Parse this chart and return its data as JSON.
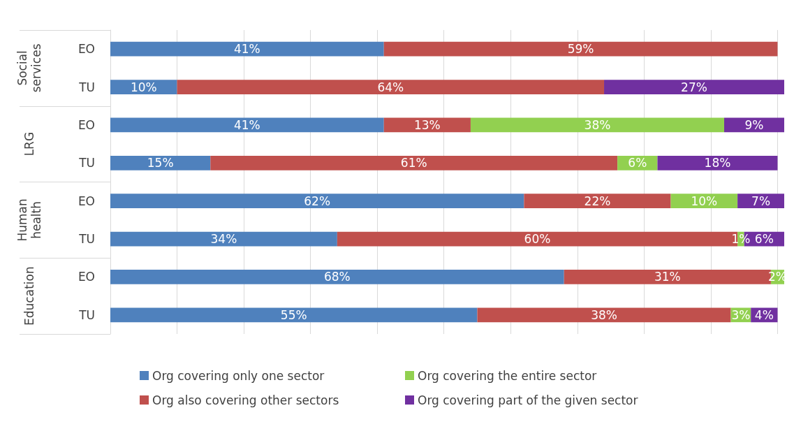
{
  "chart_data": {
    "type": "bar",
    "orientation": "horizontal",
    "stacked": true,
    "categories": [
      "EO",
      "TU",
      "EO",
      "TU",
      "EO",
      "TU",
      "EO",
      "TU"
    ],
    "annotations": [
      "Social services",
      "LRG",
      "Human health",
      "Education"
    ],
    "series": [
      {
        "name": "Org covering only one sector",
        "color": "#4f81bd",
        "values": [
          41,
          10,
          41,
          15,
          62,
          34,
          68,
          55
        ],
        "value_labels": [
          "41%",
          "10%",
          "41%",
          "15%",
          "62%",
          "34%",
          "68%",
          "55%"
        ]
      },
      {
        "name": "Org also covering other sectors",
        "color": "#c0504d",
        "values": [
          59,
          64,
          13,
          61,
          22,
          60,
          31,
          38
        ],
        "value_labels": [
          "59%",
          "64%",
          "13%",
          "61%",
          "22%",
          "60%",
          "31%",
          "38%"
        ]
      },
      {
        "name": "Org covering the entire sector",
        "color": "#92d050",
        "values": [
          null,
          null,
          38,
          6,
          10,
          1,
          2,
          3
        ],
        "value_labels": [
          null,
          null,
          "38%",
          "6%",
          "10%",
          "1%",
          "2%",
          "3%"
        ]
      },
      {
        "name": "Org covering part of the given sector",
        "color": "#7030a0",
        "values": [
          null,
          27,
          9,
          18,
          7,
          6,
          null,
          4
        ],
        "value_labels": [
          null,
          "27%",
          "9%",
          "18%",
          "7%",
          "6%",
          null,
          "4%"
        ]
      }
    ],
    "xlim": [
      0,
      101
    ],
    "xticks": [
      {
        "value": 0,
        "label": null
      },
      {
        "value": 10,
        "label": null
      },
      {
        "value": 20,
        "label": null
      },
      {
        "value": 30,
        "label": null
      },
      {
        "value": 40,
        "label": null
      },
      {
        "value": 50,
        "label": null
      },
      {
        "value": 60,
        "label": null
      },
      {
        "value": 70,
        "label": null
      },
      {
        "value": 80,
        "label": null
      },
      {
        "value": 90,
        "label": null
      },
      {
        "value": 100,
        "label": null
      }
    ],
    "grid": "x",
    "legend": "bottom",
    "tick_labels": "y"
  }
}
